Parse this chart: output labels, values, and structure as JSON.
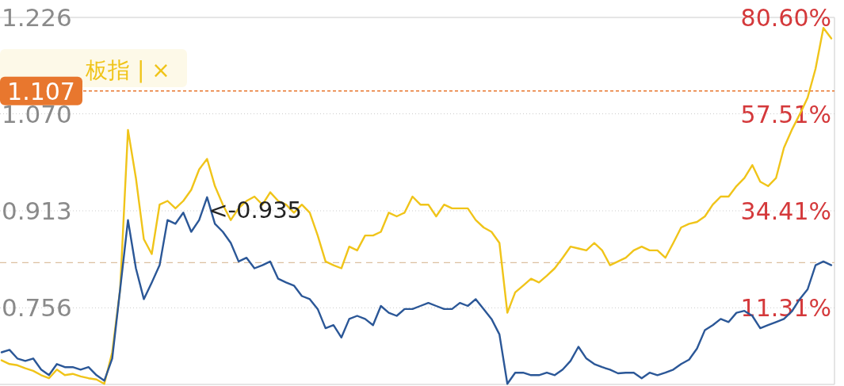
{
  "chart_data": {
    "type": "line",
    "categories": [
      null,
      null,
      null,
      null,
      null,
      null,
      null,
      null,
      null,
      null,
      null,
      null,
      null,
      null,
      null,
      null,
      null,
      null,
      null,
      null,
      null,
      null,
      null,
      null,
      null,
      null,
      null,
      null,
      null,
      null,
      null,
      null,
      null,
      null,
      null,
      null,
      null,
      null,
      null,
      null,
      null,
      null,
      null,
      null,
      null,
      null,
      null,
      null,
      null,
      null,
      null,
      null,
      null,
      null,
      null,
      null,
      null,
      null,
      null,
      null,
      null,
      null,
      null,
      null,
      null,
      null,
      null,
      null,
      null,
      null,
      null,
      null,
      null,
      null,
      null,
      null,
      null,
      null,
      null,
      null,
      null,
      null,
      null,
      null,
      null,
      null,
      null,
      null,
      null,
      null,
      null,
      null,
      null,
      null,
      null,
      null,
      null,
      null,
      null,
      null,
      null,
      null,
      null,
      null,
      null,
      null
    ],
    "series": [
      {
        "color": "#f0c419",
        "values": [
          0.671,
          0.665,
          0.663,
          0.658,
          0.654,
          0.647,
          0.642,
          0.656,
          0.647,
          0.649,
          0.645,
          0.642,
          0.64,
          0.633,
          0.684,
          0.786,
          1.044,
          0.966,
          0.867,
          0.843,
          0.923,
          0.929,
          0.917,
          0.929,
          0.947,
          0.98,
          0.997,
          0.953,
          0.923,
          0.898,
          0.917,
          0.929,
          0.936,
          0.923,
          0.943,
          0.929,
          0.923,
          0.91,
          0.923,
          0.91,
          0.873,
          0.831,
          0.825,
          0.82,
          0.855,
          0.849,
          0.873,
          0.873,
          0.879,
          0.91,
          0.904,
          0.91,
          0.936,
          0.923,
          0.923,
          0.904,
          0.923,
          0.917,
          0.917,
          0.917,
          0.898,
          0.886,
          0.879,
          0.861,
          0.748,
          0.781,
          0.792,
          0.803,
          0.797,
          0.808,
          0.82,
          0.837,
          0.855,
          0.852,
          0.849,
          0.861,
          0.849,
          0.825,
          0.831,
          0.837,
          0.849,
          0.855,
          0.849,
          0.849,
          0.837,
          0.861,
          0.886,
          0.892,
          0.895,
          0.904,
          0.923,
          0.936,
          0.936,
          0.953,
          0.966,
          0.987,
          0.96,
          0.953,
          0.966,
          1.015,
          1.044,
          1.069,
          1.096,
          1.143,
          1.209,
          1.192
        ]
      },
      {
        "color": "#2b5797",
        "values": [
          0.684,
          0.688,
          0.674,
          0.67,
          0.674,
          0.656,
          0.647,
          0.665,
          0.66,
          0.66,
          0.656,
          0.66,
          0.647,
          0.638,
          0.674,
          0.786,
          0.898,
          0.82,
          0.77,
          0.797,
          0.825,
          0.898,
          0.892,
          0.91,
          0.879,
          0.898,
          0.935,
          0.892,
          0.879,
          0.861,
          0.831,
          0.837,
          0.82,
          0.825,
          0.831,
          0.803,
          0.797,
          0.792,
          0.775,
          0.77,
          0.754,
          0.723,
          0.728,
          0.708,
          0.738,
          0.743,
          0.738,
          0.728,
          0.759,
          0.748,
          0.743,
          0.754,
          0.754,
          0.759,
          0.764,
          0.759,
          0.754,
          0.754,
          0.764,
          0.759,
          0.77,
          0.754,
          0.738,
          0.713,
          0.633,
          0.651,
          0.651,
          0.647,
          0.647,
          0.651,
          0.647,
          0.656,
          0.67,
          0.693,
          0.674,
          0.665,
          0.66,
          0.656,
          0.65,
          0.651,
          0.651,
          0.642,
          0.651,
          0.647,
          0.651,
          0.656,
          0.665,
          0.672,
          0.69,
          0.72,
          0.728,
          0.738,
          0.733,
          0.748,
          0.751,
          0.743,
          0.723,
          0.728,
          0.733,
          0.738,
          0.75,
          0.77,
          0.786,
          0.825,
          0.831,
          0.825
        ]
      }
    ],
    "ylim": [
      0.632,
      1.226
    ],
    "yticks": [
      1.226,
      {
        "value": 1.07,
        "label": "1.070"
      },
      0.913,
      0.756
    ],
    "y2lim": [
      -6.96,
      80.6
    ],
    "y2ticks": [
      {
        "value": 80.6,
        "label": "80.60%"
      },
      {
        "value": 57.51,
        "label": "57.51%"
      },
      {
        "value": 34.41,
        "label": "34.41%"
      },
      {
        "value": 11.31,
        "label": "11.31%"
      }
    ],
    "grid": "y",
    "line_style": "solid",
    "marker": "none",
    "ref_lines": [
      {
        "axis": "y",
        "value": 1.107,
        "label": "1.107",
        "color": "#e8772e",
        "line_style": "dashed"
      },
      {
        "axis": "y",
        "value": 0.829,
        "color": "#dcc0a0",
        "line_style": "dashed"
      }
    ],
    "annotations": [
      "板指 | ×",
      {
        "text": "<-0.935",
        "y": 0.935
      }
    ]
  }
}
